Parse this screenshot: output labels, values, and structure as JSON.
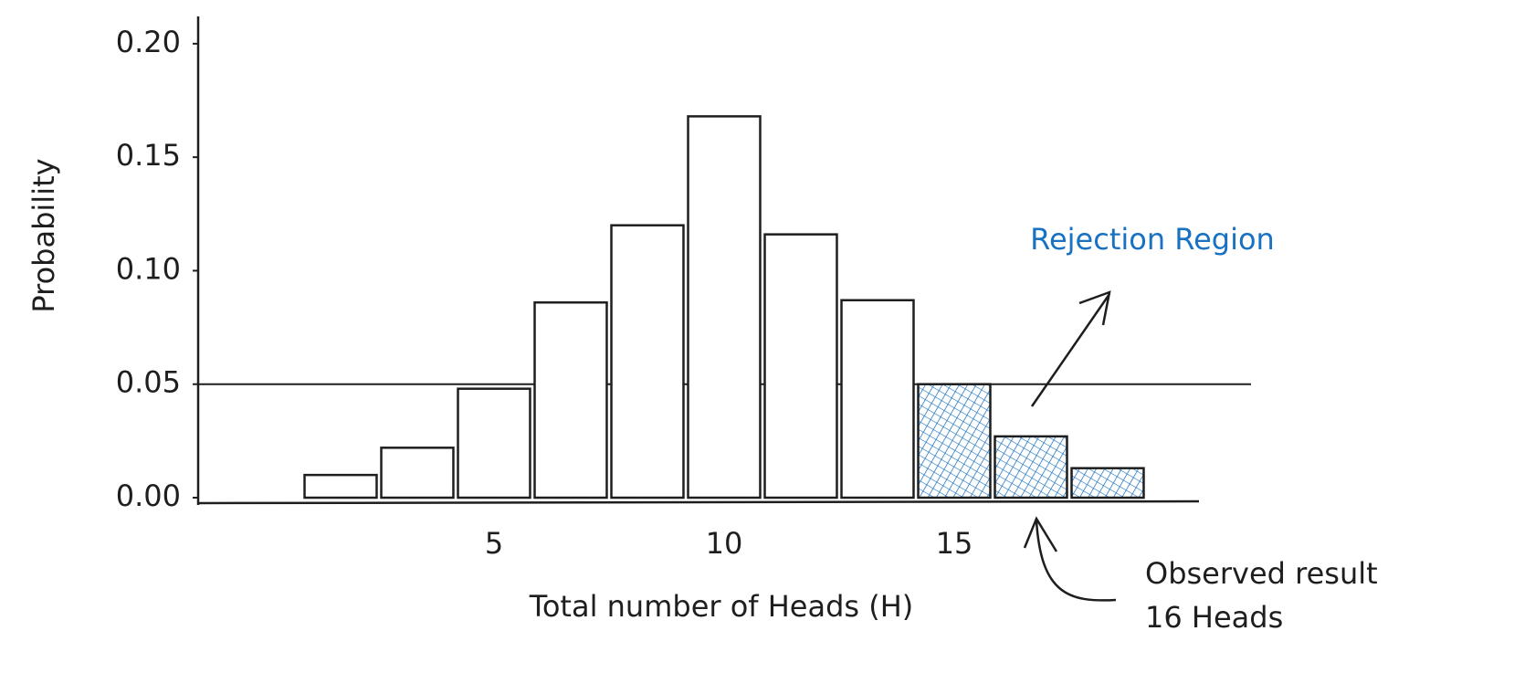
{
  "chart_data": {
    "type": "bar",
    "x_label": "Total number of Heads (H)",
    "y_label": "Probability",
    "categories": [
      null,
      null,
      "5",
      null,
      null,
      "10",
      null,
      null,
      "15",
      null,
      null
    ],
    "values": [
      0.01,
      0.022,
      0.048,
      0.086,
      0.12,
      0.168,
      0.116,
      0.087,
      0.05,
      0.027,
      0.013
    ],
    "colors": [
      "#ffffff",
      "#ffffff",
      "#ffffff",
      "#ffffff",
      "#ffffff",
      "#ffffff",
      "#ffffff",
      "#ffffff",
      "#1971c2",
      "#1971c2",
      "#1971c2"
    ],
    "ylim": [
      0,
      0.21
    ],
    "yticks": [
      {
        "value": 0,
        "label": "0.00"
      },
      {
        "value": 0.05,
        "label": "0.05"
      },
      {
        "value": 0.1,
        "label": "0.10"
      },
      {
        "value": 0.15,
        "label": "0.15"
      },
      {
        "value": 0.2,
        "label": "0.20"
      }
    ],
    "reference_line": 0.05,
    "annotations": [
      "Rejection Region",
      "Observed result",
      "16 Heads"
    ]
  }
}
